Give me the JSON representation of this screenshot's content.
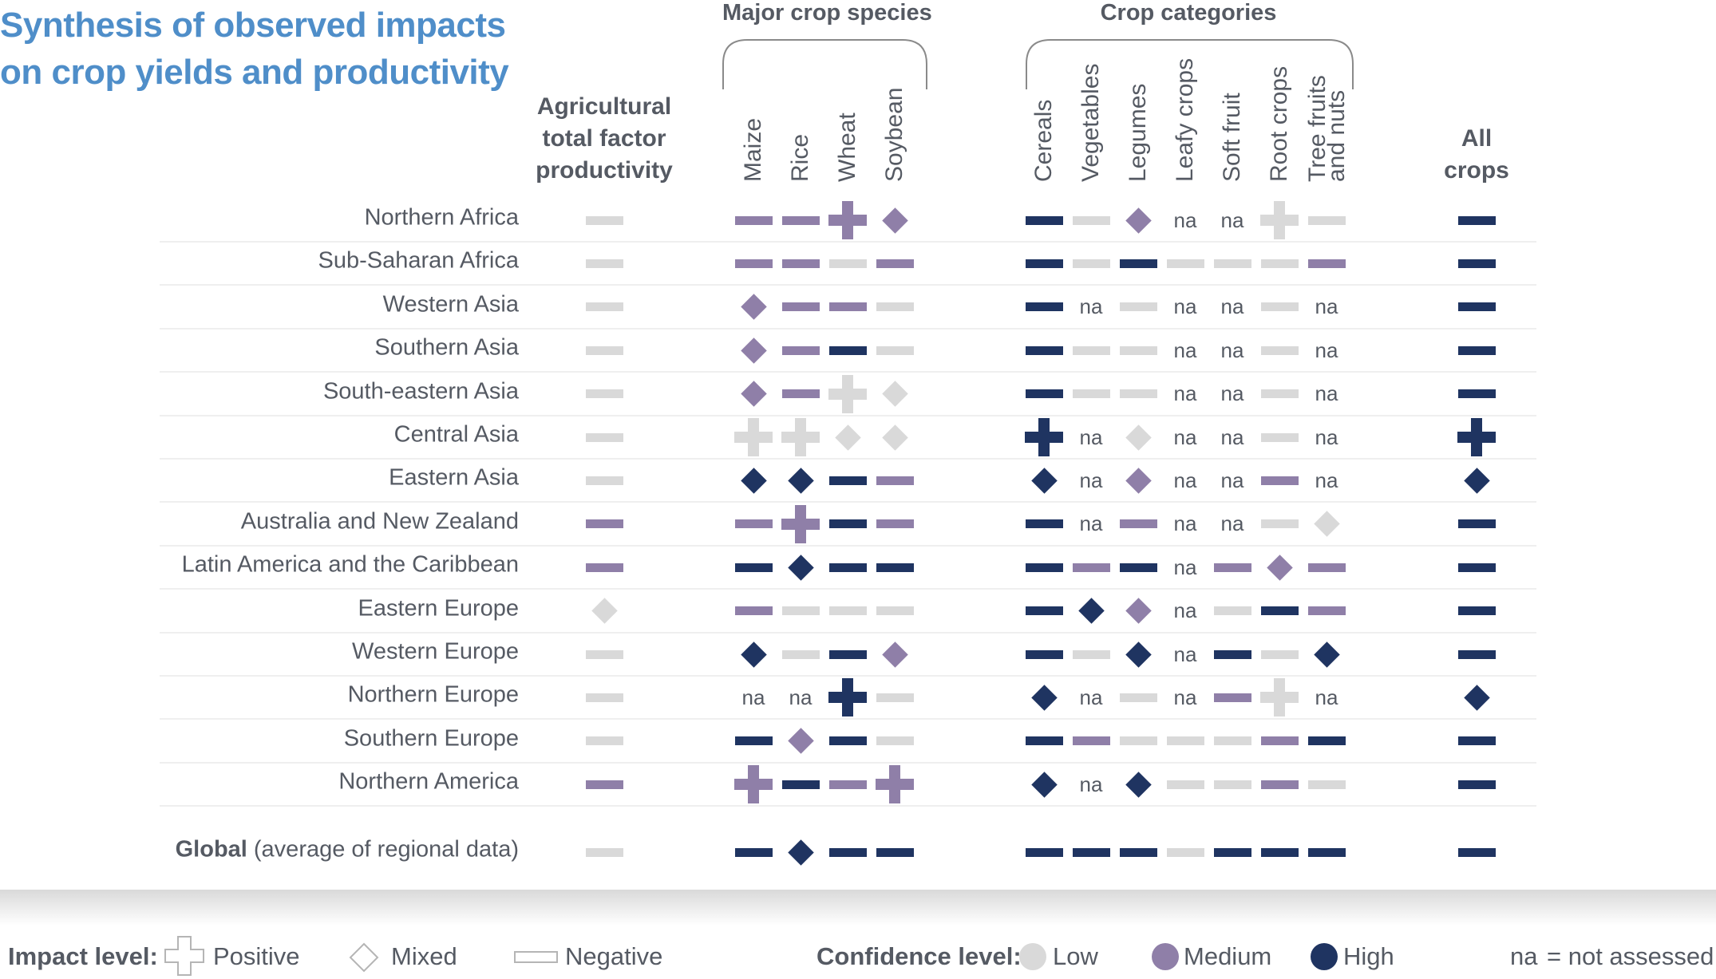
{
  "title": {
    "line1": "Synthesis of observed impacts",
    "line2": "on crop yields and productivity"
  },
  "groups": {
    "major": "Major crop species",
    "categories": "Crop categories"
  },
  "columns": {
    "atfp": {
      "line1": "Agricultural",
      "line2": "total factor",
      "line3": "productivity"
    },
    "maize": "Maize",
    "rice": "Rice",
    "wheat": "Wheat",
    "soybean": "Soybean",
    "cereals": "Cereals",
    "vegetables": "Vegetables",
    "legumes": "Legumes",
    "leafy": "Leafy crops",
    "softfruit": "Soft fruit",
    "root": "Root crops",
    "tree1": "Tree fruits",
    "tree2": "and nuts",
    "all1": "All",
    "all2": "crops"
  },
  "colors": {
    "low": "#d9d9d9",
    "medium": "#8f7fa8",
    "high": "#1f3461",
    "title": "#4f8ec9",
    "text": "#555a63"
  },
  "col_order": [
    "atfp",
    "maize",
    "rice",
    "wheat",
    "soybean",
    "cereals",
    "vegetables",
    "legumes",
    "leafy",
    "softfruit",
    "root",
    "tree",
    "all"
  ],
  "rows": [
    {
      "label": "Northern Africa",
      "cells": [
        "nL",
        "nM",
        "nM",
        "pM",
        "dM",
        "nH",
        "nL",
        "dM",
        "na",
        "na",
        "pL",
        "nL",
        "nH"
      ]
    },
    {
      "label": "Sub-Saharan Africa",
      "cells": [
        "nL",
        "nM",
        "nM",
        "nL",
        "nM",
        "nH",
        "nL",
        "nH",
        "nL",
        "nL",
        "nL",
        "nM",
        "nH"
      ]
    },
    {
      "label": "Western Asia",
      "cells": [
        "nL",
        "dM",
        "nM",
        "nM",
        "nL",
        "nH",
        "na",
        "nL",
        "na",
        "na",
        "nL",
        "na",
        "nH"
      ]
    },
    {
      "label": "Southern Asia",
      "cells": [
        "nL",
        "dM",
        "nM",
        "nH",
        "nL",
        "nH",
        "nL",
        "nL",
        "na",
        "na",
        "nL",
        "na",
        "nH"
      ]
    },
    {
      "label": "South-eastern Asia",
      "cells": [
        "nL",
        "dM",
        "nM",
        "pL",
        "dL",
        "nH",
        "nL",
        "nL",
        "na",
        "na",
        "nL",
        "na",
        "nH"
      ]
    },
    {
      "label": "Central Asia",
      "cells": [
        "nL",
        "pL",
        "pL",
        "dL",
        "dL",
        "pH",
        "na",
        "dL",
        "na",
        "na",
        "nL",
        "na",
        "pH"
      ]
    },
    {
      "label": "Eastern Asia",
      "cells": [
        "nL",
        "dH",
        "dH",
        "nH",
        "nM",
        "dH",
        "na",
        "dM",
        "na",
        "na",
        "nM",
        "na",
        "dH"
      ]
    },
    {
      "label": "Australia and New Zealand",
      "cells": [
        "nM",
        "nM",
        "pM",
        "nH",
        "nM",
        "nH",
        "na",
        "nM",
        "na",
        "na",
        "nL",
        "dL",
        "nH"
      ]
    },
    {
      "label": "Latin America and the Caribbean",
      "cells": [
        "nM",
        "nH",
        "dH",
        "nH",
        "nH",
        "nH",
        "nM",
        "nH",
        "na",
        "nM",
        "dM",
        "nM",
        "nH"
      ]
    },
    {
      "label": "Eastern Europe",
      "cells": [
        "dL",
        "nM",
        "nL",
        "nL",
        "nL",
        "nH",
        "dH",
        "dM",
        "na",
        "nL",
        "nH",
        "nM",
        "nH"
      ]
    },
    {
      "label": "Western Europe",
      "cells": [
        "nL",
        "dH",
        "nL",
        "nH",
        "dM",
        "nH",
        "nL",
        "dH",
        "na",
        "nH",
        "nL",
        "dH",
        "nH"
      ]
    },
    {
      "label": "Northern Europe",
      "cells": [
        "nL",
        "na",
        "na",
        "pH",
        "nL",
        "dH",
        "na",
        "nL",
        "na",
        "nM",
        "pL",
        "na",
        "dH"
      ]
    },
    {
      "label": "Southern Europe",
      "cells": [
        "nL",
        "nH",
        "dM",
        "nH",
        "nL",
        "nH",
        "nM",
        "nL",
        "nL",
        "nL",
        "nM",
        "nH",
        "nH"
      ]
    },
    {
      "label": "Northern America",
      "cells": [
        "nM",
        "pM",
        "nH",
        "nM",
        "pM",
        "dH",
        "na",
        "dH",
        "nL",
        "nL",
        "nM",
        "nL",
        "nH"
      ]
    }
  ],
  "global": {
    "label_bold": "Global",
    "label_rest": " (average of regional data)",
    "cells": [
      "nL",
      "nH",
      "dH",
      "nH",
      "nH",
      "nH",
      "nH",
      "nH",
      "nL",
      "nH",
      "nH",
      "nH",
      "nH"
    ]
  },
  "na_text": "na",
  "legend": {
    "impact_label": "Impact level:",
    "positive": "Positive",
    "mixed": "Mixed",
    "negative": "Negative",
    "confidence_label": "Confidence level:",
    "low": "Low",
    "medium": "Medium",
    "high": "High",
    "na_key": "na",
    "na_desc": "= not assessed"
  }
}
